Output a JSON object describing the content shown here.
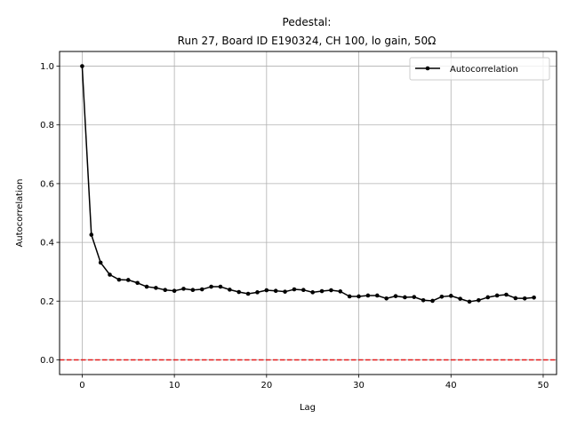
{
  "chart_data": {
    "type": "line",
    "title_line1": "Pedestal:",
    "title_line2": "Run 27, Board ID E190324, CH 100, lo gain, 50Ω",
    "xlabel": "Lag",
    "ylabel": "Autocorrelation",
    "xlim": [
      -2.45,
      51.45
    ],
    "ylim": [
      -0.05,
      1.05
    ],
    "xticks": [
      0,
      10,
      20,
      30,
      40,
      50
    ],
    "yticks": [
      0.0,
      0.2,
      0.4,
      0.6,
      0.8,
      1.0
    ],
    "xtick_labels": [
      "0",
      "10",
      "20",
      "30",
      "40",
      "50"
    ],
    "ytick_labels": [
      "0.0",
      "0.2",
      "0.4",
      "0.6",
      "0.8",
      "1.0"
    ],
    "grid": true,
    "legend_position": "top-right",
    "series": [
      {
        "name": "Autocorrelation",
        "color": "#000000",
        "marker": "dot",
        "x": [
          0,
          1,
          2,
          3,
          4,
          5,
          6,
          7,
          8,
          9,
          10,
          11,
          12,
          13,
          14,
          15,
          16,
          17,
          18,
          19,
          20,
          21,
          22,
          23,
          24,
          25,
          26,
          27,
          28,
          29,
          30,
          31,
          32,
          33,
          34,
          35,
          36,
          37,
          38,
          39,
          40,
          41,
          42,
          43,
          44,
          45,
          46,
          47,
          48,
          49
        ],
        "y": [
          1.0,
          0.426,
          0.331,
          0.29,
          0.273,
          0.272,
          0.262,
          0.249,
          0.245,
          0.238,
          0.235,
          0.242,
          0.238,
          0.24,
          0.249,
          0.249,
          0.239,
          0.231,
          0.225,
          0.23,
          0.237,
          0.235,
          0.232,
          0.24,
          0.238,
          0.23,
          0.234,
          0.237,
          0.233,
          0.216,
          0.216,
          0.219,
          0.219,
          0.209,
          0.217,
          0.213,
          0.214,
          0.203,
          0.201,
          0.215,
          0.218,
          0.208,
          0.198,
          0.203,
          0.213,
          0.219,
          0.222,
          0.21,
          0.209,
          0.212
        ]
      }
    ],
    "reference_line": {
      "y": 0.0,
      "color": "#e41a1c",
      "style": "dashed"
    }
  }
}
